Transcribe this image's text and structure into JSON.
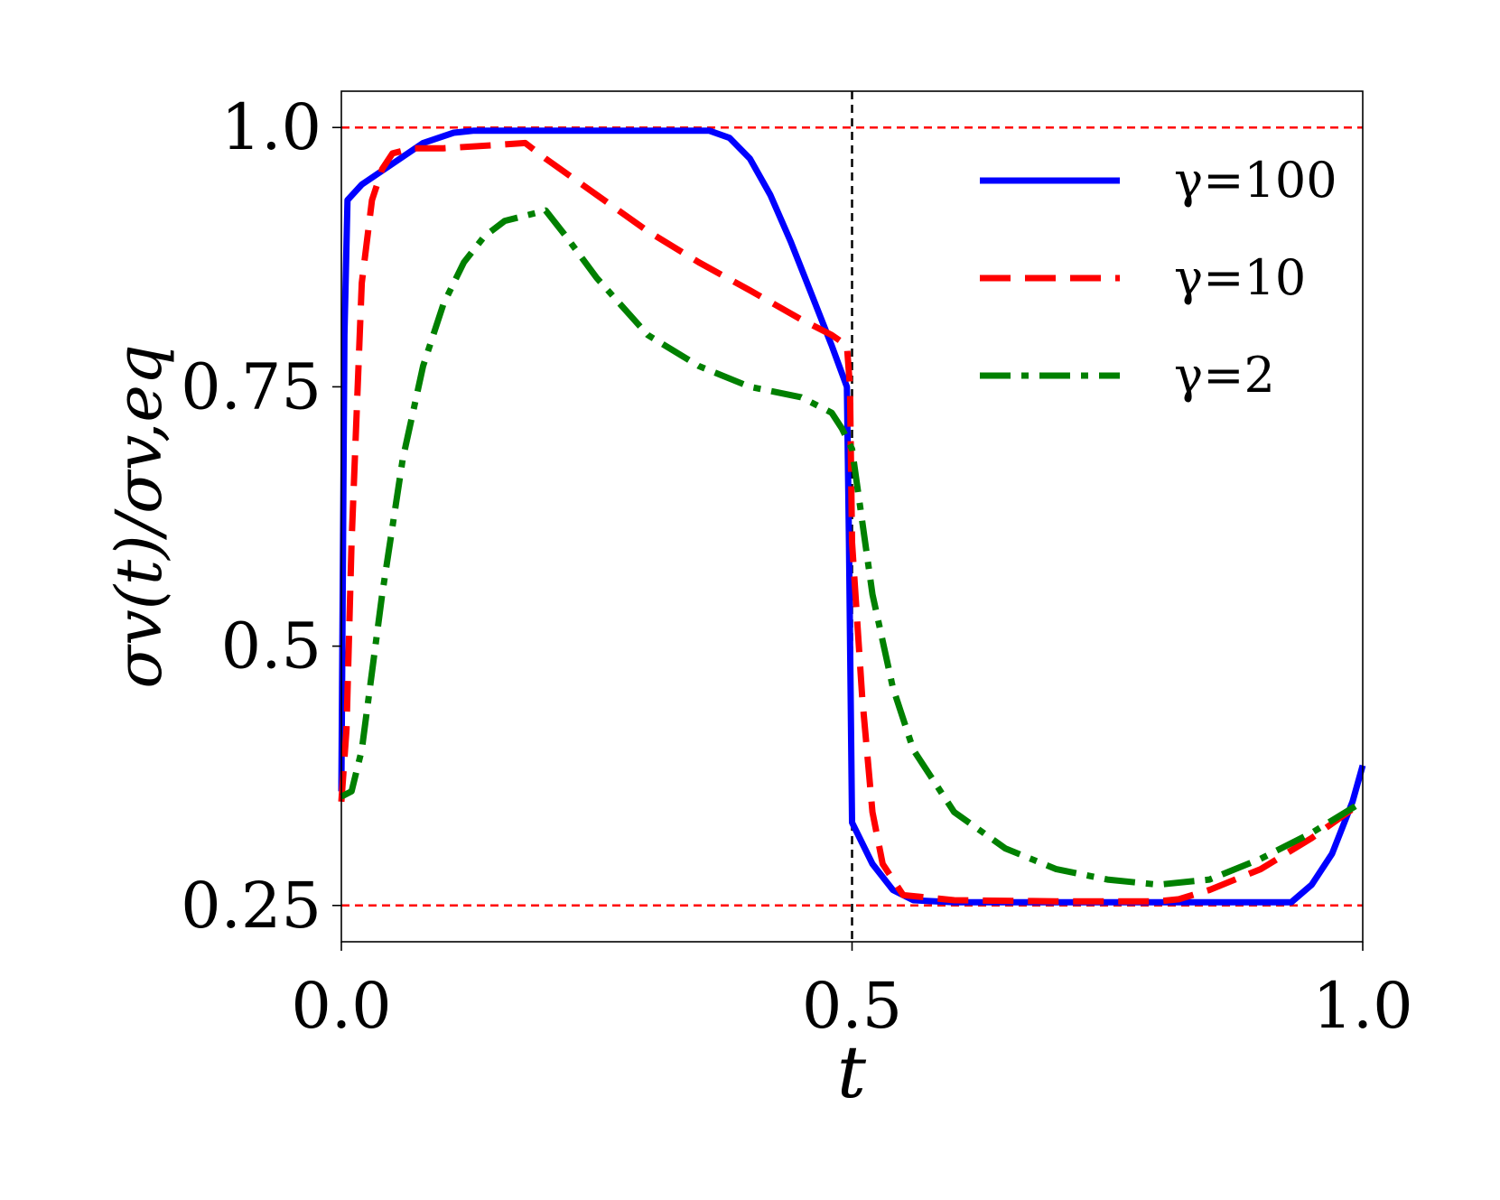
{
  "chart_data": {
    "type": "line",
    "xlabel": "t",
    "ylabel": "σv(t)/σv,eq",
    "xlim": [
      0.0,
      1.0
    ],
    "ylim": [
      0.215,
      1.035
    ],
    "x_ticks": [
      "0.0",
      "0.5",
      "1.0"
    ],
    "x_tick_values": [
      0.0,
      0.5,
      1.0
    ],
    "y_ticks": [
      "0.25",
      "0.5",
      "0.75",
      "1.0"
    ],
    "y_tick_values": [
      0.25,
      0.5,
      0.75,
      1.0
    ],
    "grid": false,
    "legend_position": "top-right",
    "reference_lines": [
      {
        "orientation": "horizontal",
        "value": 1.0,
        "color": "#ff0000",
        "style": "dashed"
      },
      {
        "orientation": "horizontal",
        "value": 0.25,
        "color": "#ff0000",
        "style": "dashed"
      },
      {
        "orientation": "vertical",
        "value": 0.5,
        "color": "#000000",
        "style": "dashed"
      }
    ],
    "series": [
      {
        "name": "γ=100",
        "color": "#0000ff",
        "style": "solid",
        "x": [
          0.0,
          0.003,
          0.006,
          0.02,
          0.05,
          0.08,
          0.11,
          0.13,
          0.2,
          0.3,
          0.36,
          0.38,
          0.4,
          0.42,
          0.44,
          0.46,
          0.48,
          0.495,
          0.497,
          0.5,
          0.52,
          0.54,
          0.56,
          0.6,
          0.7,
          0.8,
          0.9,
          0.93,
          0.95,
          0.97,
          0.99,
          1.0
        ],
        "y": [
          0.36,
          0.8,
          0.93,
          0.945,
          0.965,
          0.985,
          0.995,
          0.997,
          0.997,
          0.997,
          0.997,
          0.99,
          0.97,
          0.935,
          0.89,
          0.84,
          0.79,
          0.75,
          0.6,
          0.33,
          0.29,
          0.265,
          0.255,
          0.253,
          0.253,
          0.253,
          0.253,
          0.253,
          0.27,
          0.3,
          0.35,
          0.385
        ]
      },
      {
        "name": "γ=10",
        "color": "#ff0000",
        "style": "dashed",
        "x": [
          0.0,
          0.005,
          0.01,
          0.02,
          0.03,
          0.04,
          0.05,
          0.07,
          0.1,
          0.15,
          0.18,
          0.2,
          0.25,
          0.3,
          0.35,
          0.4,
          0.45,
          0.48,
          0.495,
          0.498,
          0.5,
          0.51,
          0.52,
          0.53,
          0.55,
          0.6,
          0.7,
          0.8,
          0.82,
          0.85,
          0.9,
          0.95,
          1.0
        ],
        "y": [
          0.35,
          0.42,
          0.6,
          0.85,
          0.93,
          0.96,
          0.975,
          0.98,
          0.98,
          0.983,
          0.985,
          0.97,
          0.935,
          0.9,
          0.87,
          0.843,
          0.815,
          0.8,
          0.79,
          0.75,
          0.6,
          0.45,
          0.34,
          0.29,
          0.26,
          0.255,
          0.254,
          0.254,
          0.256,
          0.265,
          0.285,
          0.315,
          0.35
        ]
      },
      {
        "name": "γ=2",
        "color": "#008000",
        "style": "dashdot",
        "x": [
          0.0,
          0.01,
          0.02,
          0.04,
          0.06,
          0.08,
          0.1,
          0.12,
          0.14,
          0.16,
          0.18,
          0.2,
          0.22,
          0.25,
          0.3,
          0.35,
          0.4,
          0.45,
          0.48,
          0.49,
          0.495,
          0.5,
          0.51,
          0.52,
          0.54,
          0.56,
          0.6,
          0.65,
          0.7,
          0.75,
          0.8,
          0.85,
          0.9,
          0.95,
          1.0
        ],
        "y": [
          0.355,
          0.36,
          0.4,
          0.55,
          0.68,
          0.77,
          0.83,
          0.87,
          0.895,
          0.91,
          0.915,
          0.92,
          0.895,
          0.855,
          0.8,
          0.77,
          0.75,
          0.74,
          0.725,
          0.71,
          0.7,
          0.69,
          0.62,
          0.55,
          0.46,
          0.4,
          0.34,
          0.305,
          0.285,
          0.275,
          0.27,
          0.275,
          0.295,
          0.32,
          0.35
        ]
      }
    ]
  }
}
